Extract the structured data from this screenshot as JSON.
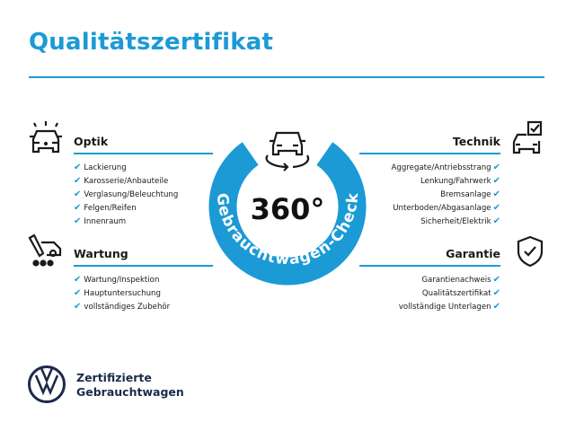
{
  "title": "Qualitätszertifikat",
  "badge": {
    "value": "360°",
    "ring_text": "Gebrauchtwagen-Check",
    "color": "#1b9ad6"
  },
  "sections": {
    "optik": {
      "heading": "Optik",
      "icon": "car-lights-icon",
      "items": [
        "Lackierung",
        "Karosserie/Anbauteile",
        "Verglasung/Beleuchtung",
        "Felgen/Reifen",
        "Innenraum"
      ]
    },
    "wartung": {
      "heading": "Wartung",
      "icon": "service-tools-icon",
      "items": [
        "Wartung/Inspektion",
        "Hauptuntersuchung",
        "vollständiges Zubehör"
      ]
    },
    "technik": {
      "heading": "Technik",
      "icon": "car-checklist-icon",
      "items": [
        "Aggregate/Antriebsstrang",
        "Lenkung/Fahrwerk",
        "Bremsanlage",
        "Unterboden/Abgasanlage",
        "Sicherheit/Elektrik"
      ]
    },
    "garantie": {
      "heading": "Garantie",
      "icon": "shield-check-icon",
      "items": [
        "Garantienachweis",
        "Qualitätszertifikat",
        "vollständige Unterlagen"
      ]
    }
  },
  "check_glyph": "✔",
  "brand": {
    "line1": "Zertifizierte",
    "line2": "Gebrauchtwagen",
    "logo": "vw-logo"
  }
}
